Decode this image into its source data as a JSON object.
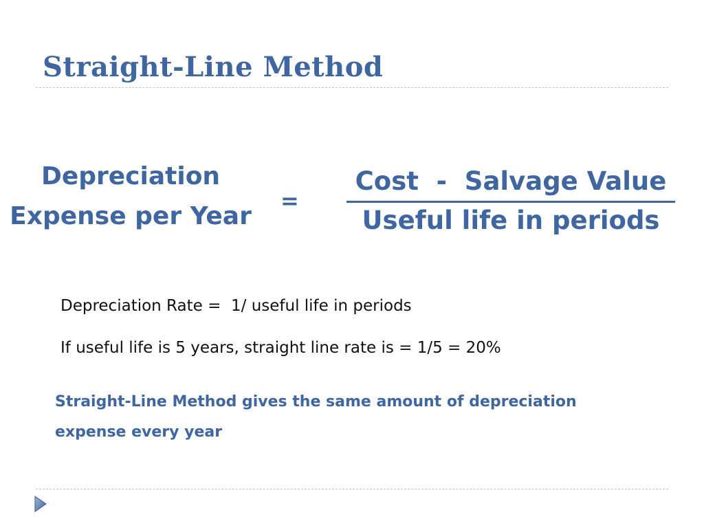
{
  "slide": {
    "title": "Straight-Line Method",
    "formula": {
      "lhs_line1": "Depreciation",
      "lhs_line2": "Expense per Year",
      "equals": "=",
      "numerator": "Cost  -  Salvage Value",
      "denominator": "Useful life in periods"
    },
    "rate_line": "Depreciation Rate =  1/ useful life in periods",
    "example_line": "If useful life is 5 years, straight line rate is = 1/5 = 20%",
    "summary": "Straight-Line Method gives the same amount of depreciation expense every year"
  },
  "icons": {
    "nav": "play-triangle-icon"
  },
  "colors": {
    "accent": "#3F66A0",
    "body_text": "#111111",
    "divider": "#B9C6D2"
  }
}
